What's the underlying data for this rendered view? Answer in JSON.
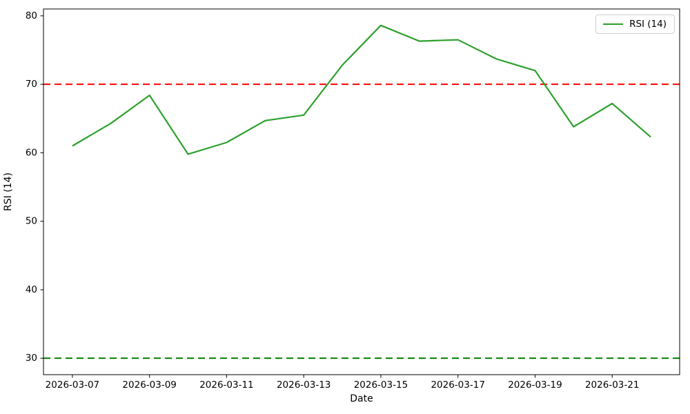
{
  "chart_data": {
    "type": "line",
    "title": "",
    "xlabel": "Date",
    "ylabel": "RSI (14)",
    "x": [
      "2026-03-07",
      "2026-03-08",
      "2026-03-09",
      "2026-03-10",
      "2026-03-11",
      "2026-03-12",
      "2026-03-13",
      "2026-03-14",
      "2026-03-15",
      "2026-03-16",
      "2026-03-17",
      "2026-03-18",
      "2026-03-19",
      "2026-03-20",
      "2026-03-21",
      "2026-03-22"
    ],
    "series": [
      {
        "name": "RSI (14)",
        "color": "#2ca02c",
        "style": "solid",
        "values": [
          61.0,
          64.3,
          68.4,
          59.8,
          61.5,
          64.7,
          65.5,
          72.8,
          78.6,
          76.3,
          76.5,
          73.7,
          72.0,
          63.8,
          67.2,
          62.3
        ]
      }
    ],
    "reference_lines": [
      {
        "name": "overbought-threshold",
        "value": 70,
        "color": "#ff0000",
        "style": "dashed"
      },
      {
        "name": "oversold-threshold",
        "value": 30,
        "color": "#008000",
        "style": "dashed"
      }
    ],
    "yticks": [
      30,
      40,
      50,
      60,
      70,
      80
    ],
    "xticks": [
      "2026-03-07",
      "2026-03-09",
      "2026-03-11",
      "2026-03-13",
      "2026-03-15",
      "2026-03-17",
      "2026-03-19",
      "2026-03-21"
    ],
    "ylim": [
      27.6,
      81.0
    ],
    "xlim_index": [
      -0.75,
      15.75
    ],
    "grid": "off",
    "legend_position": "upper right"
  }
}
